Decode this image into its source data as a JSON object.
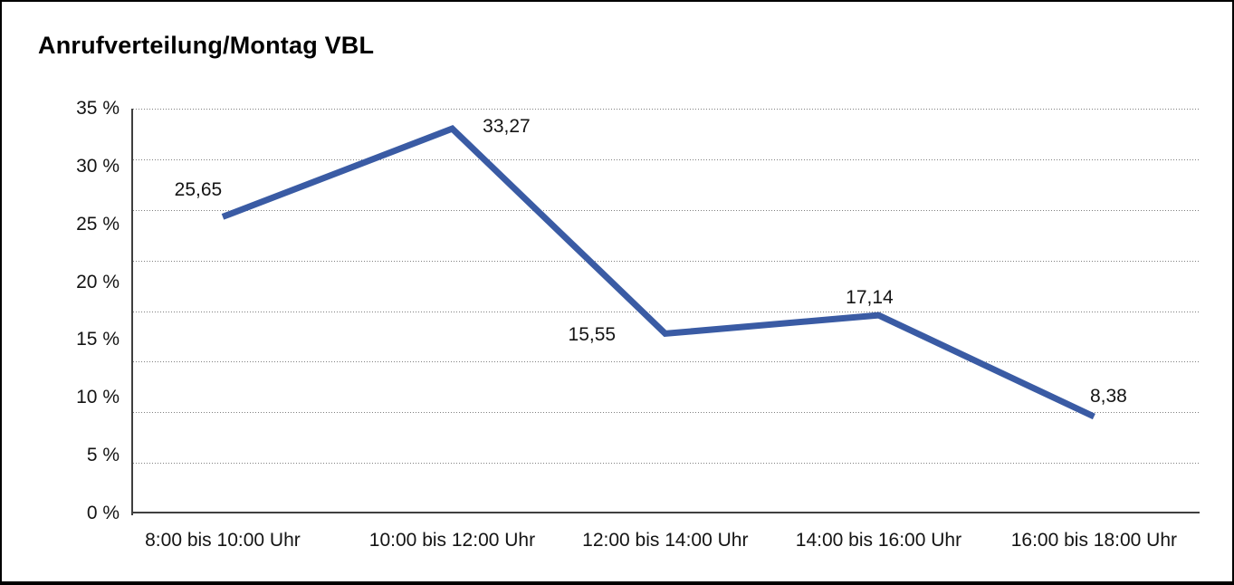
{
  "title": "Anrufverteilung/Montag VBL",
  "chart_data": {
    "type": "line",
    "title": "Anrufverteilung/Montag VBL",
    "categories": [
      "8:00 bis 10:00 Uhr",
      "10:00 bis 12:00 Uhr",
      "12:00 bis 14:00 Uhr",
      "14:00 bis 16:00 Uhr",
      "16:00 bis 18:00 Uhr"
    ],
    "values": [
      25.65,
      33.27,
      15.55,
      17.14,
      8.38
    ],
    "point_labels": [
      "25,65",
      "33,27",
      "15,55",
      "17,14",
      "8,38"
    ],
    "y_ticks": [
      "35 %",
      "30 %",
      "25 %",
      "20 %",
      "15 %",
      "10 %",
      "5 %",
      "0 %"
    ],
    "ylim": [
      0,
      35
    ],
    "y_tick_step": 5,
    "xlabel": "",
    "ylabel": "",
    "grid": "horizontal-dotted",
    "legend": "none",
    "line_color": "#3a5ba4",
    "text_color": "#141414"
  }
}
